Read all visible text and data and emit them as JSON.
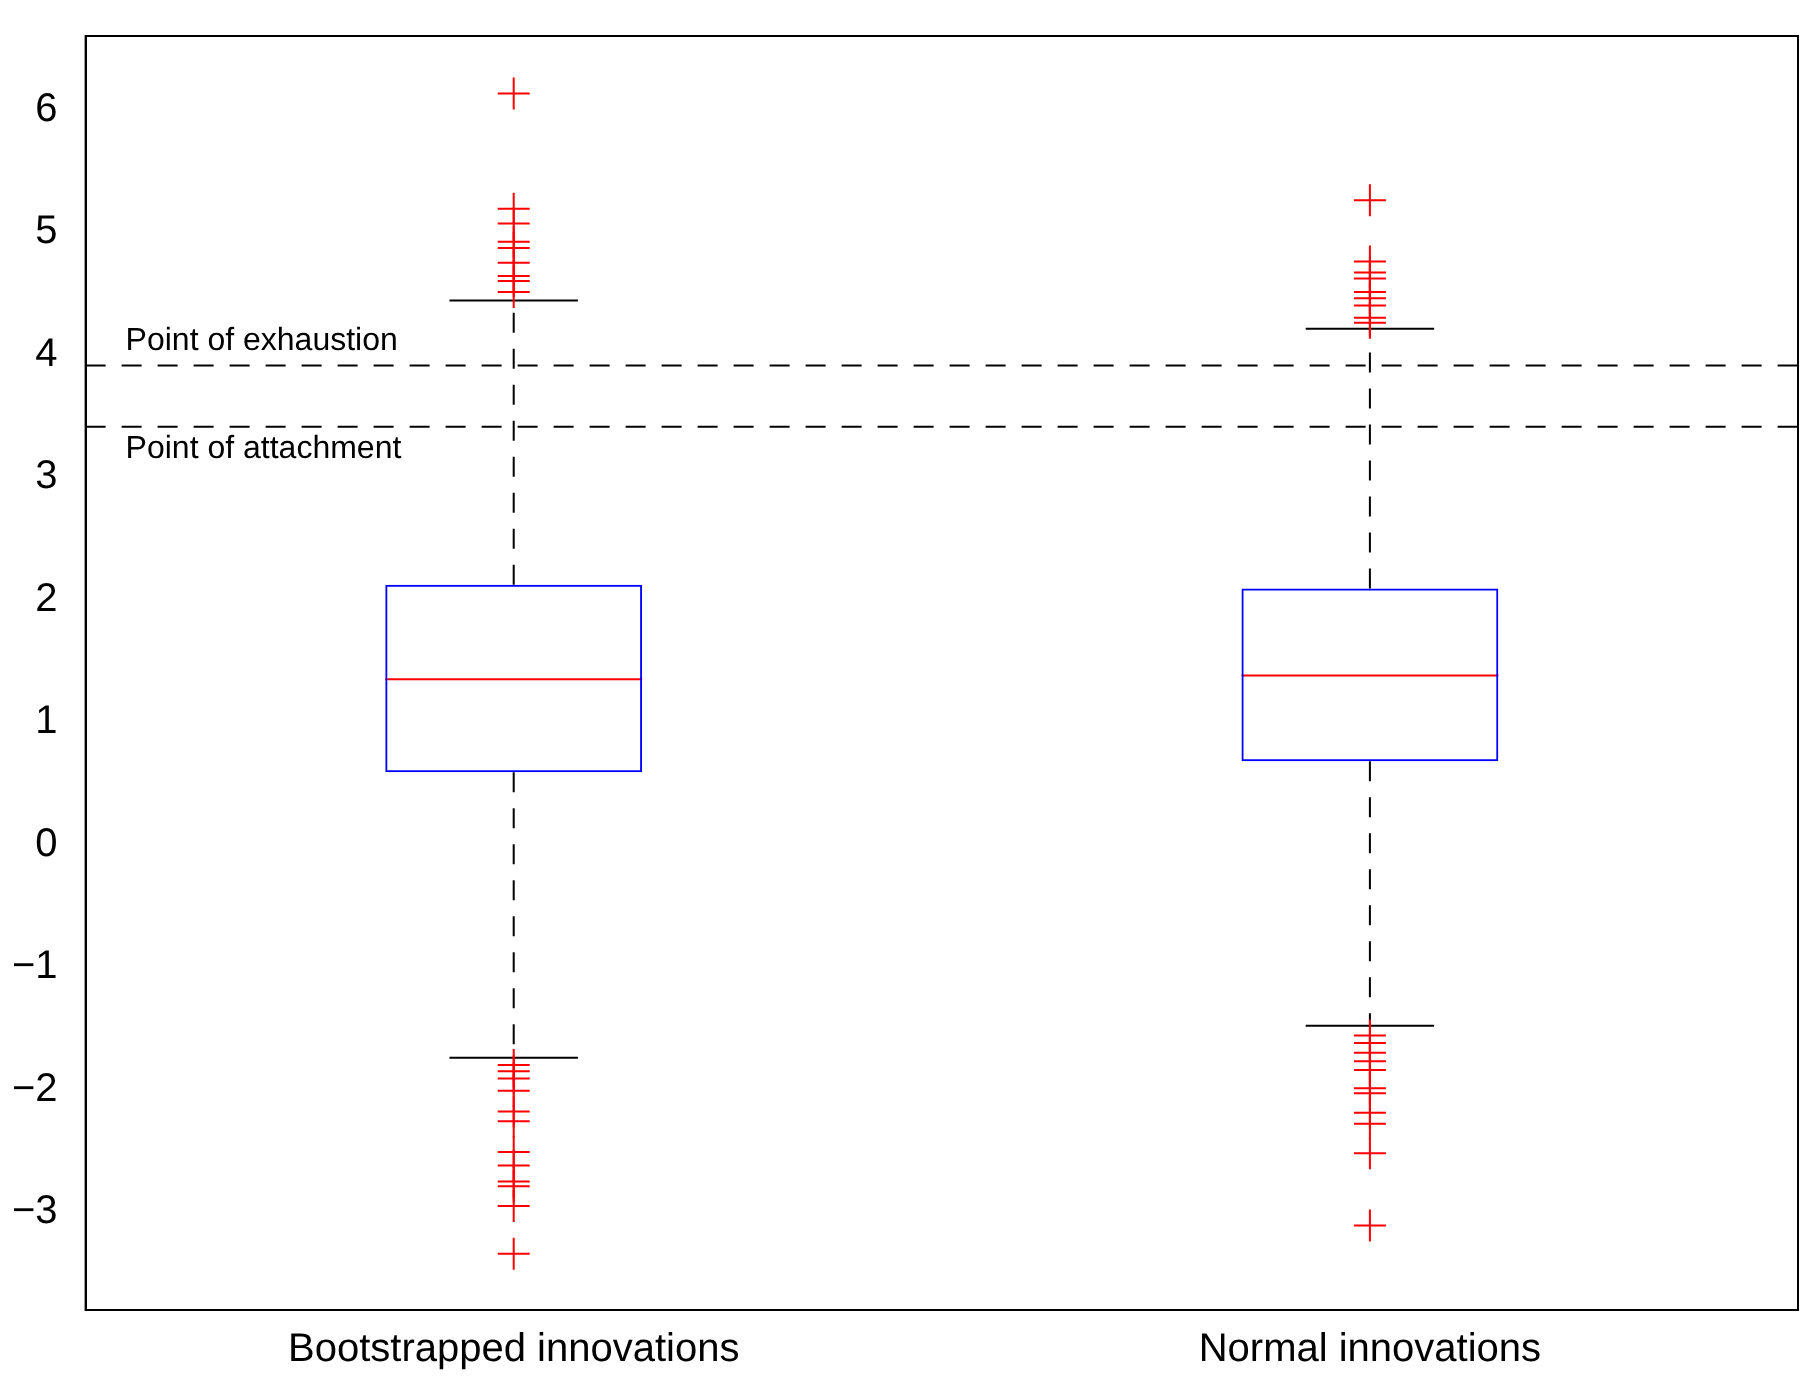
{
  "chart_data": {
    "type": "box",
    "categories": [
      "Bootstrapped innovations",
      "Normal innovations"
    ],
    "boxes": [
      {
        "low": -1.74,
        "q1": 0.59,
        "median": 1.35,
        "q3": 2.12,
        "high": 4.44,
        "outliers": [
          6.13,
          5.19,
          5.07,
          4.92,
          4.87,
          4.75,
          4.64,
          4.6,
          4.51,
          -1.8,
          -1.85,
          -1.91,
          -2.01,
          -2.18,
          -2.26,
          -2.51,
          -2.62,
          -2.75,
          -2.79,
          -2.95,
          -3.34
        ]
      },
      {
        "low": -1.48,
        "q1": 0.68,
        "median": 1.38,
        "q3": 2.09,
        "high": 4.21,
        "outliers": [
          5.26,
          4.76,
          4.67,
          4.62,
          4.51,
          4.46,
          4.4,
          4.3,
          4.26,
          -1.56,
          -1.62,
          -1.7,
          -1.77,
          -1.84,
          -1.99,
          -2.03,
          -2.19,
          -2.28,
          -2.52,
          -3.11
        ]
      }
    ],
    "color": "#0000ff",
    "marker": "cross",
    "ylim": [
      -3.8,
      6.6
    ],
    "yticks": [
      {
        "value": -3,
        "label": "−3"
      },
      {
        "value": -2,
        "label": "−2"
      },
      {
        "value": -1,
        "label": "−1"
      },
      0,
      1,
      2,
      3,
      4,
      5,
      6
    ],
    "ref_lines": [
      {
        "axis": "y",
        "value": 3.91,
        "label": "Point of exhaustion",
        "color": "#000000",
        "line_style": "dashed"
      },
      {
        "axis": "y",
        "value": 3.41,
        "label": "Point of attachment",
        "color": "#000000",
        "line_style": "dashed"
      }
    ],
    "grid": false,
    "legend": false
  }
}
